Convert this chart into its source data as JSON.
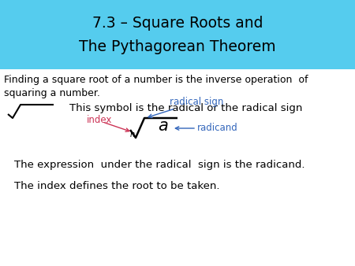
{
  "title_line1": "7.3 – Square Roots and",
  "title_line2": "The Pythagorean Theorem",
  "title_bg_color": "#55CCEE",
  "title_text_color": "#000000",
  "body_bg_color": "#FFFFFF",
  "text1": "Finding a square root of a number is the inverse operation of\nsquaring a number.",
  "text2": "This symbol is the radical or the radical sign",
  "text3": "The expression  under the radical  sign is the radicand.",
  "text4": "The index defines the root to be taken.",
  "label_index": "index",
  "label_index_color": "#CC3355",
  "label_radical_sign": "radical sign",
  "label_radical_sign_color": "#3366BB",
  "label_radicand": "radicand",
  "label_radicand_color": "#3366BB",
  "radical_color": "#000000",
  "arrow_color_index": "#CC3355",
  "arrow_color_radical": "#3366BB",
  "arrow_color_radicand": "#3366BB"
}
